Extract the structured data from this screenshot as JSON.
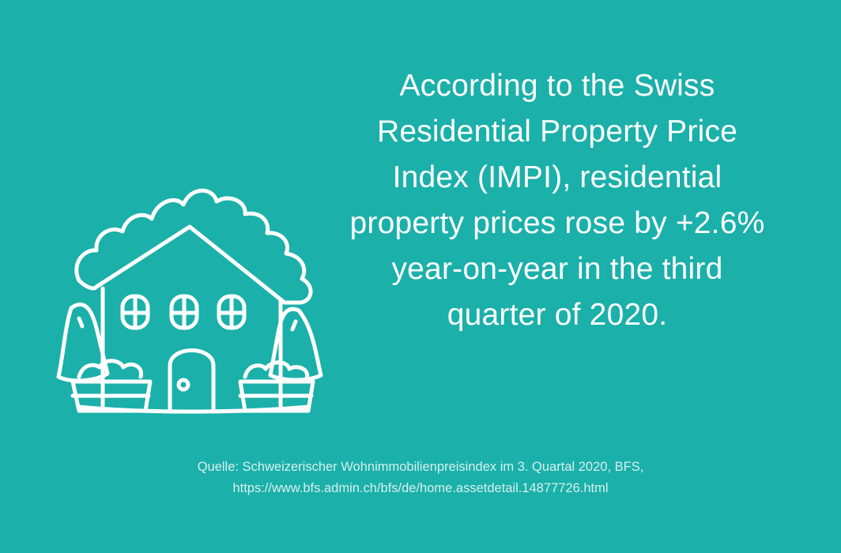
{
  "colors": {
    "background": "#1bb0aa",
    "text": "#ffffff",
    "source_text": "#d6f0ee"
  },
  "illustration": {
    "icon": "house-icon"
  },
  "headline": {
    "lines": [
      "According to the Swiss",
      "Residential Property Price",
      "Index (IMPI), residential",
      "property prices rose by +2.6%",
      "year-on-year in the third",
      "quarter of 2020."
    ]
  },
  "source": {
    "line1": "Quelle: Schweizerischer Wohnimmobilienpreisindex im 3. Quartal 2020, BFS,",
    "line2": "https://www.bfs.admin.ch/bfs/de/home.assetdetail.14877726.html"
  }
}
